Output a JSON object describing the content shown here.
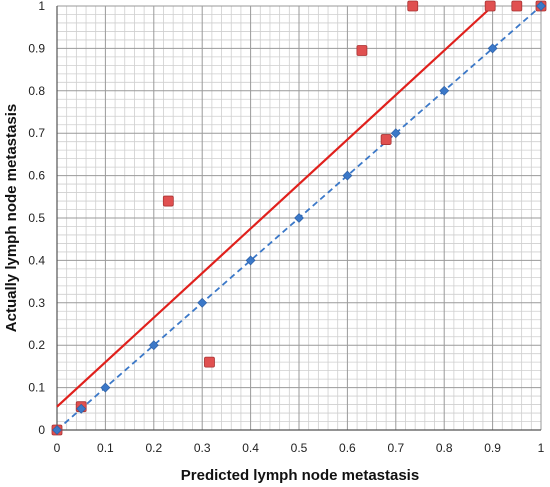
{
  "chart_data": {
    "type": "scatter",
    "xlabel": "Predicted lymph node metastasis",
    "ylabel": "Actually lymph node metastasis",
    "xlim": [
      0,
      1
    ],
    "ylim": [
      0,
      1
    ],
    "x_ticks": [
      "0",
      "0.1",
      "0.2",
      "0.3",
      "0.4",
      "0.5",
      "0.6",
      "0.7",
      "0.8",
      "0.9",
      "1"
    ],
    "y_ticks": [
      "0",
      "0.1",
      "0.2",
      "0.3",
      "0.4",
      "0.5",
      "0.6",
      "0.7",
      "0.8",
      "0.9",
      "1"
    ],
    "grid": true,
    "series": [
      {
        "marker": "square",
        "color": "#e05050",
        "points": [
          [
            0.0,
            0.0
          ],
          [
            0.05,
            0.055
          ],
          [
            0.23,
            0.54
          ],
          [
            0.315,
            0.16
          ],
          [
            0.63,
            0.895
          ],
          [
            0.68,
            0.685
          ],
          [
            0.735,
            1.0
          ],
          [
            0.895,
            1.0
          ],
          [
            0.95,
            1.0
          ],
          [
            1.0,
            1.0
          ]
        ]
      },
      {
        "marker": "diamond",
        "line": "dashed",
        "color": "#3b78c8",
        "points": [
          [
            0.0,
            0.0
          ],
          [
            0.05,
            0.05
          ],
          [
            0.1,
            0.1
          ],
          [
            0.2,
            0.2
          ],
          [
            0.3,
            0.3
          ],
          [
            0.4,
            0.4
          ],
          [
            0.5,
            0.5
          ],
          [
            0.6,
            0.6
          ],
          [
            0.7,
            0.7
          ],
          [
            0.8,
            0.8
          ],
          [
            0.9,
            0.9
          ],
          [
            1.0,
            1.0
          ]
        ]
      },
      {
        "marker": "none",
        "line": "solid",
        "color": "#e0201c",
        "points": [
          [
            0.0,
            0.055
          ],
          [
            0.9,
            1.0
          ]
        ]
      }
    ]
  }
}
